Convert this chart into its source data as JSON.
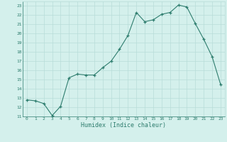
{
  "x_values": [
    0,
    1,
    2,
    3,
    4,
    5,
    6,
    7,
    8,
    9,
    10,
    11,
    12,
    13,
    14,
    15,
    16,
    17,
    18,
    19,
    20,
    21,
    22,
    23
  ],
  "y_values": [
    12.8,
    12.7,
    12.4,
    11.1,
    12.1,
    15.2,
    15.6,
    15.5,
    15.5,
    16.3,
    17.0,
    18.3,
    19.8,
    22.3,
    21.3,
    21.5,
    22.1,
    22.3,
    23.1,
    22.9,
    21.1,
    19.4,
    17.5,
    14.5
  ],
  "line_color": "#2e7d6e",
  "marker_color": "#2e7d6e",
  "bg_color": "#d4f0ec",
  "grid_color": "#b8ddd8",
  "axis_color": "#2e7d6e",
  "xlabel": "Humidex (Indice chaleur)",
  "ylim": [
    11,
    23.5
  ],
  "xlim": [
    -0.5,
    23.5
  ],
  "yticks": [
    11,
    12,
    13,
    14,
    15,
    16,
    17,
    18,
    19,
    20,
    21,
    22,
    23
  ],
  "xticks": [
    0,
    1,
    2,
    3,
    4,
    5,
    6,
    7,
    8,
    9,
    10,
    11,
    12,
    13,
    14,
    15,
    16,
    17,
    18,
    19,
    20,
    21,
    22,
    23
  ]
}
